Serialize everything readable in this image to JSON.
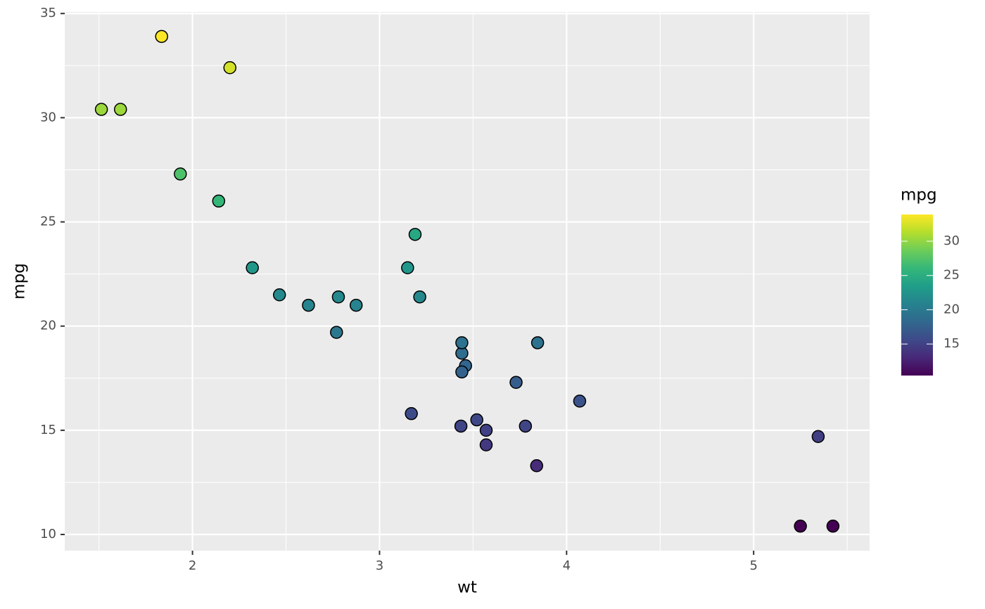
{
  "chart_data": {
    "type": "scatter",
    "x_label": "wt",
    "y_label": "mpg",
    "x": [
      2.62,
      2.875,
      2.32,
      3.215,
      3.44,
      3.46,
      3.57,
      3.19,
      3.15,
      3.44,
      3.44,
      4.07,
      3.73,
      3.78,
      5.25,
      5.424,
      5.345,
      2.2,
      1.615,
      1.835,
      2.465,
      3.52,
      3.435,
      3.84,
      3.845,
      1.935,
      2.14,
      1.513,
      3.17,
      2.77,
      3.57,
      2.78
    ],
    "values": [
      21.0,
      21.0,
      22.8,
      21.4,
      18.7,
      18.1,
      14.3,
      24.4,
      22.8,
      19.2,
      17.8,
      16.4,
      17.3,
      15.2,
      10.4,
      10.4,
      14.7,
      32.4,
      30.4,
      33.9,
      21.5,
      15.5,
      15.2,
      13.3,
      19.2,
      27.3,
      26.0,
      30.4,
      15.8,
      19.7,
      15.0,
      21.4
    ],
    "xlim": [
      1.317,
      5.62
    ],
    "ylim": [
      9.225,
      35.075
    ],
    "xticks": [
      2,
      3,
      4,
      5
    ],
    "yticks": [
      10,
      15,
      20,
      25,
      30,
      35
    ],
    "xticks_minor": [
      1.5,
      2.5,
      3.5,
      4.5,
      5.5
    ],
    "yticks_minor": [
      12.5,
      17.5,
      22.5,
      27.5,
      32.5
    ],
    "grid": true,
    "colorbar": {
      "title": "mpg",
      "clim": [
        10.4,
        33.9
      ],
      "ticks": [
        15,
        20,
        25,
        30
      ],
      "colorscale": [
        "#440154",
        "#482878",
        "#3e4a89",
        "#31688e",
        "#26828e",
        "#1f9e89",
        "#35b779",
        "#6dcd59",
        "#b4de2c",
        "#fde725"
      ]
    }
  }
}
